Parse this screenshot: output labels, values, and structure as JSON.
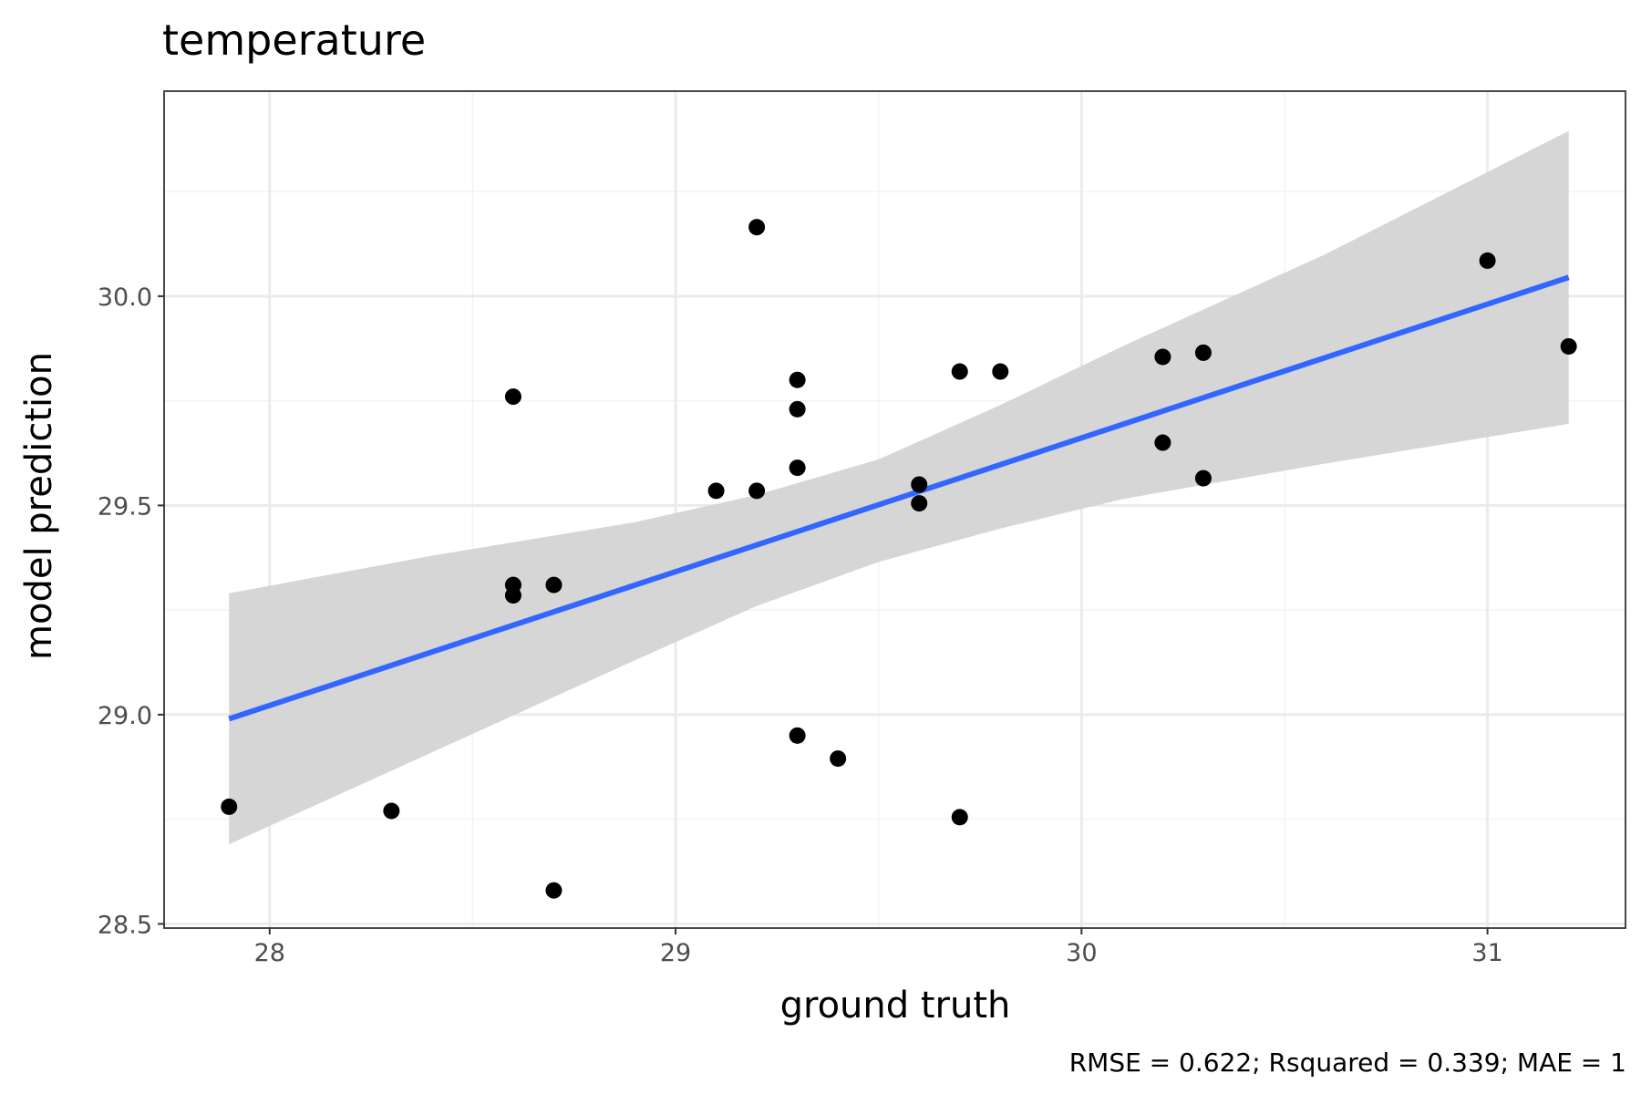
{
  "chart_data": {
    "type": "scatter",
    "title": "temperature",
    "xlabel": "ground truth",
    "ylabel": "model prediction",
    "caption": "RMSE = 0.622; Rsquared = 0.339; MAE = 1",
    "xlim": [
      27.74,
      31.34
    ],
    "ylim": [
      28.49,
      30.49
    ],
    "x_ticks": [
      28,
      29,
      30,
      31
    ],
    "x_tick_labels": [
      "28",
      "29",
      "30",
      "31"
    ],
    "y_ticks": [
      28.5,
      29.0,
      29.5,
      30.0
    ],
    "y_tick_labels": [
      "28.5",
      "29.0",
      "29.5",
      "30.0"
    ],
    "x_minor_ticks": [
      28.5,
      29.5,
      30.5
    ],
    "y_minor_ticks": [
      28.75,
      29.25,
      29.75,
      30.25
    ],
    "grid": true,
    "points": [
      {
        "x": 27.9,
        "y": 28.78
      },
      {
        "x": 28.3,
        "y": 28.77
      },
      {
        "x": 28.6,
        "y": 29.76
      },
      {
        "x": 28.6,
        "y": 29.31
      },
      {
        "x": 28.6,
        "y": 29.285
      },
      {
        "x": 28.7,
        "y": 29.31
      },
      {
        "x": 28.7,
        "y": 28.58
      },
      {
        "x": 29.1,
        "y": 29.535
      },
      {
        "x": 29.2,
        "y": 30.165
      },
      {
        "x": 29.2,
        "y": 29.535
      },
      {
        "x": 29.3,
        "y": 29.8
      },
      {
        "x": 29.3,
        "y": 29.73
      },
      {
        "x": 29.3,
        "y": 29.59
      },
      {
        "x": 29.3,
        "y": 28.95
      },
      {
        "x": 29.4,
        "y": 28.895
      },
      {
        "x": 29.6,
        "y": 29.55
      },
      {
        "x": 29.6,
        "y": 29.505
      },
      {
        "x": 29.7,
        "y": 29.82
      },
      {
        "x": 29.7,
        "y": 28.755
      },
      {
        "x": 29.8,
        "y": 29.82
      },
      {
        "x": 30.2,
        "y": 29.855
      },
      {
        "x": 30.2,
        "y": 29.65
      },
      {
        "x": 30.3,
        "y": 29.865
      },
      {
        "x": 30.3,
        "y": 29.565
      },
      {
        "x": 31.0,
        "y": 30.085
      },
      {
        "x": 31.2,
        "y": 29.88
      }
    ],
    "fit_line": {
      "x": [
        27.9,
        31.2
      ],
      "y": [
        28.99,
        30.045
      ]
    },
    "confidence_band": {
      "x": [
        27.9,
        28.4,
        28.9,
        29.2,
        29.5,
        29.8,
        30.1,
        30.6,
        31.2
      ],
      "lower": [
        28.69,
        28.91,
        29.13,
        29.26,
        29.365,
        29.445,
        29.515,
        29.6,
        29.695
      ],
      "upper": [
        29.29,
        29.38,
        29.46,
        29.525,
        29.61,
        29.74,
        29.88,
        30.1,
        30.395
      ]
    },
    "colors": {
      "points": "#000000",
      "fit_line": "#3366ff",
      "band": "#d4d4d4",
      "grid_major": "#ebebeb",
      "grid_minor": "#f3f3f3",
      "panel_border": "#333333"
    }
  }
}
